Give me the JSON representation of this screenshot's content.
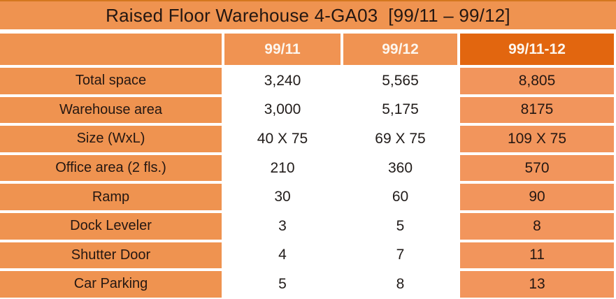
{
  "title": "Raised Floor Warehouse 4-GA03  [99/11 – 99/12]",
  "table": {
    "columns": [
      "99/11",
      "99/12",
      "99/11-12"
    ],
    "rows": [
      {
        "label": "Total space",
        "values": [
          "3,240",
          "5,565",
          "8,805"
        ]
      },
      {
        "label": "Warehouse area",
        "values": [
          "3,000",
          "5,175",
          "8175"
        ]
      },
      {
        "label": "Size (WxL)",
        "values": [
          "40 X 75",
          "69 X 75",
          "109 X 75"
        ]
      },
      {
        "label": "Office area (2 fls.)",
        "values": [
          "210",
          "360",
          "570"
        ]
      },
      {
        "label": "Ramp",
        "values": [
          "30",
          "60",
          "90"
        ]
      },
      {
        "label": "Dock Leveler",
        "values": [
          "3",
          "5",
          "8"
        ]
      },
      {
        "label": "Shutter Door",
        "values": [
          "4",
          "7",
          "11"
        ]
      },
      {
        "label": "Car Parking",
        "values": [
          "5",
          "8",
          "13"
        ]
      }
    ]
  },
  "colors": {
    "orange": "#ef9350",
    "header_dark_orange": "#e2660f",
    "total_column_orange": "#f2955c",
    "row_peach": "#fadcca",
    "row_cream": "#fdf0e8",
    "border_white": "#ffffff",
    "text_dark": "#241712",
    "header_text": "#fdf6ee"
  },
  "chart_data": {
    "type": "table",
    "title": "Raised Floor Warehouse 4-GA03  [99/11 – 99/12]",
    "columns": [
      "",
      "99/11",
      "99/12",
      "99/11-12"
    ],
    "rows": [
      [
        "Total space",
        "3,240",
        "5,565",
        "8,805"
      ],
      [
        "Warehouse area",
        "3,000",
        "5,175",
        "8175"
      ],
      [
        "Size (WxL)",
        "40 X 75",
        "69 X 75",
        "109 X 75"
      ],
      [
        "Office area (2 fls.)",
        "210",
        "360",
        "570"
      ],
      [
        "Ramp",
        "30",
        "60",
        "90"
      ],
      [
        "Dock Leveler",
        "3",
        "5",
        "8"
      ],
      [
        "Shutter Door",
        "4",
        "7",
        "11"
      ],
      [
        "Car Parking",
        "5",
        "8",
        "13"
      ]
    ]
  }
}
